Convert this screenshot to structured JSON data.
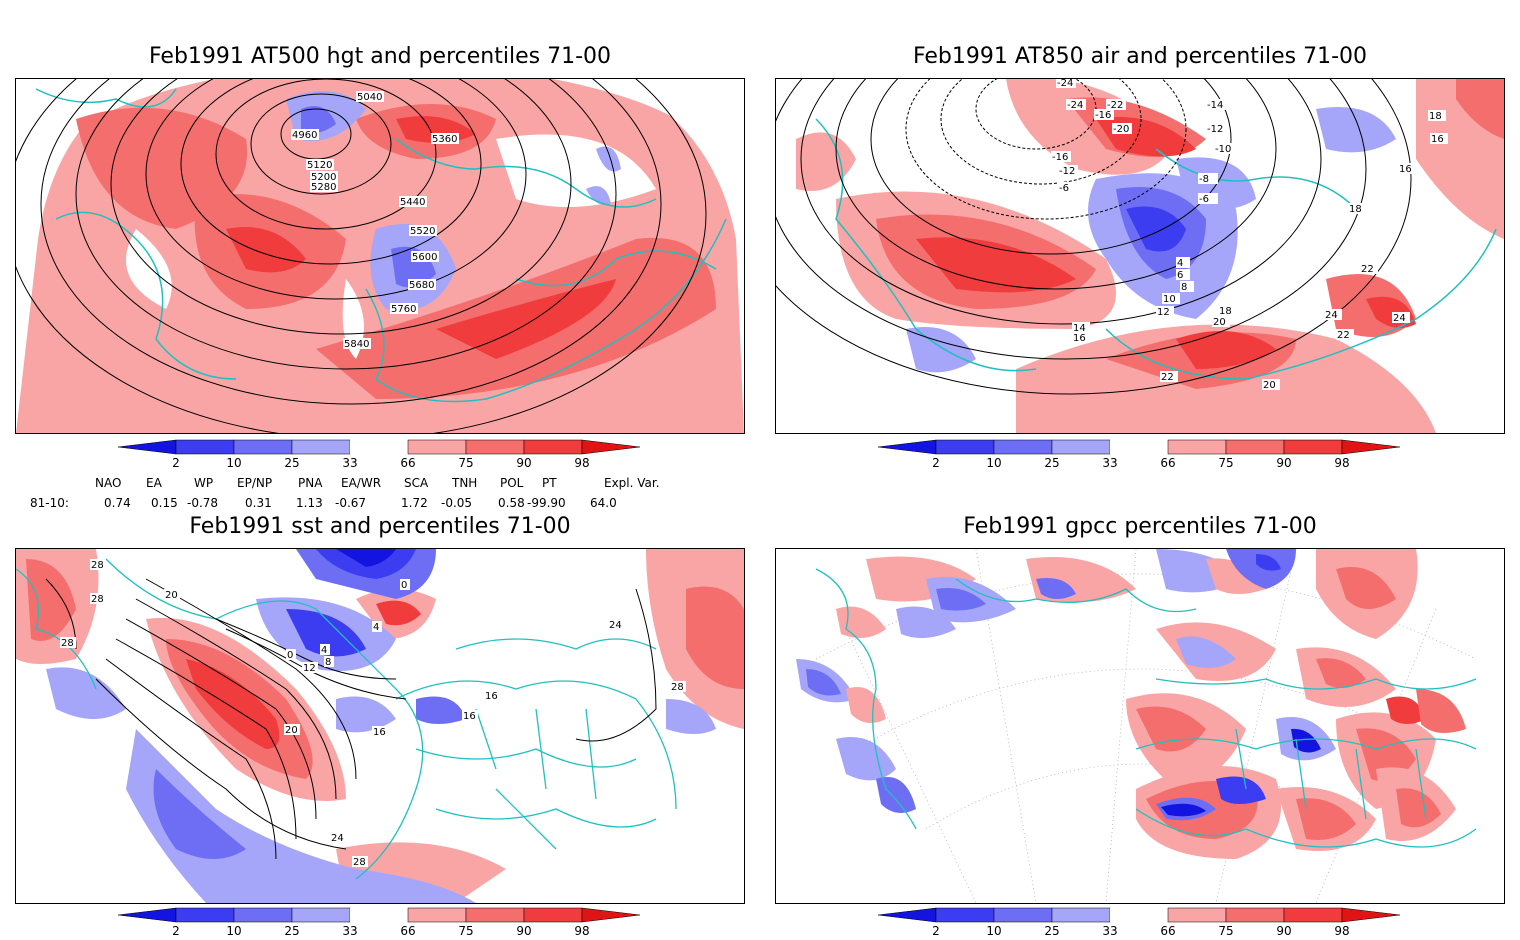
{
  "panels": [
    {
      "title": "Feb1991 AT500 hgt and percentiles 71-00",
      "contour_labels": [
        "5040",
        "4960",
        "5360",
        "5120",
        "5200",
        "5280",
        "5440",
        "5520",
        "5600",
        "5680",
        "5760",
        "5840"
      ]
    },
    {
      "title": "Feb1991 AT850 air and percentiles 71-00",
      "contour_labels": [
        "-24",
        "-24",
        "-22",
        "-16",
        "-20",
        "-12",
        "-14",
        "-10",
        "-8",
        "-6",
        "-16",
        "-12",
        "-6",
        "4",
        "6",
        "8",
        "10",
        "12",
        "14",
        "16",
        "18",
        "20",
        "22",
        "24",
        "22",
        "20",
        "18",
        "16",
        "16",
        "18",
        "22",
        "24"
      ]
    },
    {
      "title": "Feb1991 sst and percentiles 71-00",
      "contour_labels": [
        "28",
        "28",
        "28",
        "20",
        "4",
        "8",
        "12",
        "0",
        "4",
        "20",
        "16",
        "16",
        "16",
        "24",
        "28",
        "24",
        "28",
        "0"
      ]
    },
    {
      "title": "Feb1991 gpcc percentiles 71-00",
      "contour_labels": []
    }
  ],
  "colorbar": {
    "ticks": [
      "2",
      "10",
      "25",
      "33",
      "66",
      "75",
      "90",
      "98"
    ],
    "colors": [
      "#1414e0",
      "#3c3cf0",
      "#6e6ef5",
      "#a5a5fa",
      "#ffffff",
      "#faa5a5",
      "#f56e6e",
      "#f03c3c",
      "#e01414"
    ]
  },
  "indices": {
    "headers": [
      "NAO",
      "EA",
      "WP",
      "EP/NP",
      "PNA",
      "EA/WR",
      "SCA",
      "TNH",
      "POL",
      "PT",
      "Expl. Var."
    ],
    "row_label": "81-10:",
    "values": [
      "0.74",
      "0.15",
      "-0.78",
      "0.31",
      "1.13",
      "-0.67",
      "1.72",
      "-0.05",
      "0.58",
      "-99.90",
      "64.0"
    ]
  }
}
